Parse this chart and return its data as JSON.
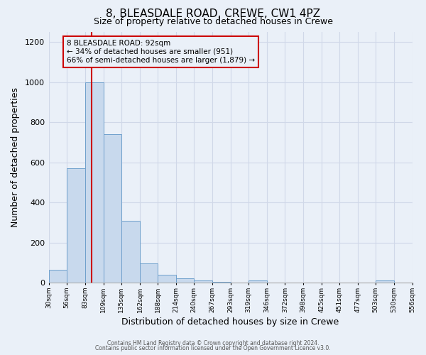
{
  "title": "8, BLEASDALE ROAD, CREWE, CW1 4PZ",
  "subtitle": "Size of property relative to detached houses in Crewe",
  "xlabel": "Distribution of detached houses by size in Crewe",
  "ylabel": "Number of detached properties",
  "bar_color": "#c8d9ed",
  "bar_edge_color": "#6fa0cc",
  "bin_edges": [
    30,
    56,
    83,
    109,
    135,
    162,
    188,
    214,
    240,
    267,
    293,
    319,
    346,
    372,
    398,
    425,
    451,
    477,
    503,
    530,
    556
  ],
  "bin_labels": [
    "30sqm",
    "56sqm",
    "83sqm",
    "109sqm",
    "135sqm",
    "162sqm",
    "188sqm",
    "214sqm",
    "240sqm",
    "267sqm",
    "293sqm",
    "319sqm",
    "346sqm",
    "372sqm",
    "398sqm",
    "425sqm",
    "451sqm",
    "477sqm",
    "503sqm",
    "530sqm",
    "556sqm"
  ],
  "counts": [
    65,
    570,
    1000,
    740,
    310,
    95,
    40,
    22,
    12,
    5,
    0,
    10,
    0,
    0,
    0,
    0,
    0,
    0,
    10,
    0
  ],
  "red_line_x": 92,
  "ylim": [
    0,
    1250
  ],
  "yticks": [
    0,
    200,
    400,
    600,
    800,
    1000,
    1200
  ],
  "ann_line1": "8 BLEASDALE ROAD: 92sqm",
  "ann_line2": "← 34% of detached houses are smaller (951)",
  "ann_line3": "66% of semi-detached houses are larger (1,879) →",
  "footer1": "Contains HM Land Registry data © Crown copyright and database right 2024.",
  "footer2": "Contains public sector information licensed under the Open Government Licence v3.0.",
  "background_color": "#eaf0f8",
  "grid_color": "#d0d8e8",
  "box_edge_color": "#cc0000",
  "title_fontsize": 11,
  "subtitle_fontsize": 9
}
